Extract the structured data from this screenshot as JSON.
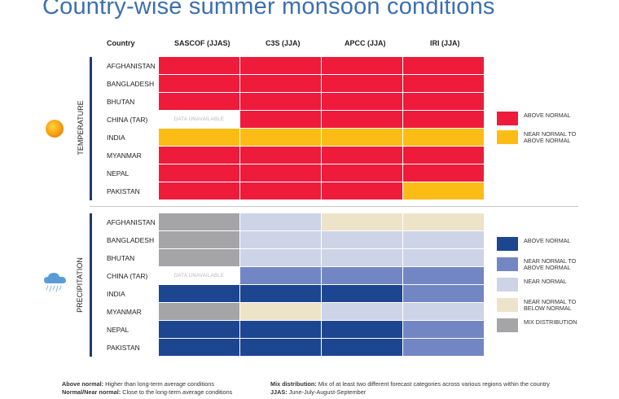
{
  "title": "Country-wise summer monsoon conditions",
  "column_header_label": "Country",
  "columns": [
    "SASCOF (JJAS)",
    "C3S (JJA)",
    "APCC (JJA)",
    "IRI (JJA)"
  ],
  "data_unavailable_text": "DATA UNAVAILABLE",
  "colors": {
    "above_normal_temp": "#ee1b3b",
    "near_normal_to_above_temp": "#fcbc16",
    "above_normal_precip": "#1d4691",
    "near_normal_to_above_precip": "#7386c4",
    "near_normal_precip": "#cdd4e8",
    "near_normal_to_below_precip": "#ede3c9",
    "mix_distribution": "#a5a5a7",
    "data_unavailable": "#ffffff",
    "title": "#3d6fb0",
    "section_bar": "#1f3b70"
  },
  "chart_data": [
    {
      "type": "table",
      "title": "Temperature",
      "columns": [
        "SASCOF (JJAS)",
        "C3S (JJA)",
        "APCC (JJA)",
        "IRI (JJA)"
      ],
      "rows": [
        {
          "country": "AFGHANISTAN",
          "values": [
            "above",
            "above",
            "above",
            "above"
          ]
        },
        {
          "country": "BANGLADESH",
          "values": [
            "above",
            "above",
            "above",
            "above"
          ]
        },
        {
          "country": "BHUTAN",
          "values": [
            "above",
            "above",
            "above",
            "above"
          ]
        },
        {
          "country": "CHINA (TAR)",
          "values": [
            "na",
            "above",
            "above",
            "above"
          ]
        },
        {
          "country": "INDIA",
          "values": [
            "nn_above",
            "nn_above",
            "nn_above",
            "nn_above"
          ]
        },
        {
          "country": "MYANMAR",
          "values": [
            "above",
            "above",
            "above",
            "above"
          ]
        },
        {
          "country": "NEPAL",
          "values": [
            "above",
            "above",
            "above",
            "above"
          ]
        },
        {
          "country": "PAKISTAN",
          "values": [
            "above",
            "above",
            "above",
            "nn_above"
          ]
        }
      ],
      "legend": [
        {
          "key": "above",
          "label": "ABOVE NORMAL",
          "color": "#ee1b3b"
        },
        {
          "key": "nn_above",
          "label": "NEAR NORMAL TO ABOVE NORMAL",
          "color": "#fcbc16"
        }
      ]
    },
    {
      "type": "table",
      "title": "Precipitation",
      "columns": [
        "SASCOF (JJAS)",
        "C3S (JJA)",
        "APCC (JJA)",
        "IRI (JJA)"
      ],
      "rows": [
        {
          "country": "AFGHANISTAN",
          "values": [
            "mix",
            "near",
            "nn_below",
            "nn_below"
          ]
        },
        {
          "country": "BANGLADESH",
          "values": [
            "mix",
            "near",
            "near",
            "near"
          ]
        },
        {
          "country": "BHUTAN",
          "values": [
            "mix",
            "near",
            "near",
            "near"
          ]
        },
        {
          "country": "CHINA (TAR)",
          "values": [
            "na",
            "nn_above",
            "nn_above",
            "nn_above"
          ]
        },
        {
          "country": "INDIA",
          "values": [
            "above",
            "above",
            "above",
            "nn_above"
          ]
        },
        {
          "country": "MYANMAR",
          "values": [
            "mix",
            "nn_below",
            "near",
            "near"
          ]
        },
        {
          "country": "NEPAL",
          "values": [
            "above",
            "above",
            "above",
            "nn_above"
          ]
        },
        {
          "country": "PAKISTAN",
          "values": [
            "above",
            "above",
            "above",
            "nn_above"
          ]
        }
      ],
      "legend": [
        {
          "key": "above",
          "label": "ABOVE NORMAL",
          "color": "#1d4691"
        },
        {
          "key": "nn_above",
          "label": "NEAR NORMAL TO ABOVE NORMAL",
          "color": "#7386c4"
        },
        {
          "key": "near",
          "label": "NEAR NORMAL",
          "color": "#cdd4e8"
        },
        {
          "key": "nn_below",
          "label": "NEAR NORMAL TO BELOW NORMAL",
          "color": "#ede3c9"
        },
        {
          "key": "mix",
          "label": "MIX DISTRIBUTION",
          "color": "#a5a5a7"
        }
      ]
    }
  ],
  "section_labels": {
    "temperature": "TEMPERATURE",
    "precipitation": "PRECIPITATION"
  },
  "footnotes": {
    "above_normal_term": "Above normal:",
    "above_normal_text": "Higher than long-term average conditions",
    "normal_term": "Normal/Near normal:",
    "normal_text": "Close to the long-term average conditions",
    "mix_term": "Mix distribution:",
    "mix_text": "Mix of at least two different forecast categories across various regions within the country",
    "jjas_term": "JJAS:",
    "jjas_text": "June-July-August-September"
  }
}
